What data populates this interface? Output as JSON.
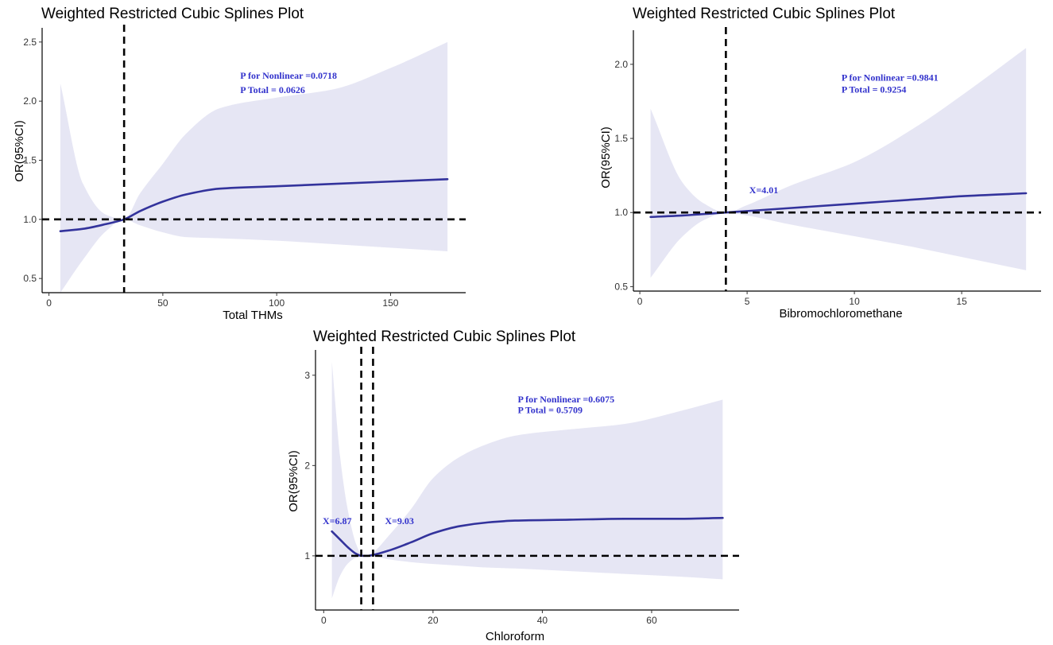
{
  "colors": {
    "ci_fill": "#e6e6f4",
    "line": "#33339c",
    "annotation": "#3333cc",
    "reference": "#000000"
  },
  "chart_data": [
    {
      "id": "thms",
      "type": "line",
      "title": "Weighted Restricted Cubic Splines Plot",
      "xlabel": "Total THMs",
      "ylabel": "OR(95%CI)",
      "xlim": [
        -3,
        183
      ],
      "ylim": [
        0.38,
        2.62
      ],
      "xticks": [
        0,
        50,
        100,
        150
      ],
      "xtick_labels": [
        "0",
        "50",
        "100",
        "150"
      ],
      "yticks": [
        0.5,
        1.0,
        1.5,
        2.0,
        2.5
      ],
      "ytick_labels": [
        "0.5",
        "1.0",
        "1.5",
        "2.0",
        "2.5"
      ],
      "x": [
        5,
        15,
        25,
        33,
        40,
        50,
        60,
        75,
        100,
        125,
        150,
        175
      ],
      "or": [
        0.9,
        0.92,
        0.96,
        1.0,
        1.07,
        1.15,
        1.21,
        1.26,
        1.28,
        1.3,
        1.32,
        1.34
      ],
      "ci_lower": [
        0.38,
        0.66,
        0.9,
        1.0,
        0.95,
        0.89,
        0.85,
        0.84,
        0.82,
        0.79,
        0.76,
        0.73
      ],
      "ci_upper": [
        2.15,
        1.3,
        1.04,
        1.0,
        1.22,
        1.47,
        1.72,
        1.94,
        2.03,
        2.1,
        2.28,
        2.5
      ],
      "ref_y": 1.0,
      "ref_x": [
        33
      ],
      "annotations": [
        {
          "text": "P for Nonlinear =0.0718",
          "x": 84,
          "y": 2.19
        },
        {
          "text": "P Total = 0.0626",
          "x": 84,
          "y": 2.07
        }
      ]
    },
    {
      "id": "bdcm",
      "type": "line",
      "title": "Weighted Restricted Cubic Splines Plot",
      "xlabel": "Bibromochloromethane",
      "ylabel": "OR(95%CI)",
      "xlim": [
        -0.3,
        18.7
      ],
      "ylim": [
        0.47,
        2.23
      ],
      "xticks": [
        0,
        5,
        10,
        15
      ],
      "xtick_labels": [
        "0",
        "5",
        "10",
        "15"
      ],
      "yticks": [
        0.5,
        1.0,
        1.5,
        2.0
      ],
      "ytick_labels": [
        "0.5",
        "1.0",
        "1.5",
        "2.0"
      ],
      "x": [
        0.5,
        2,
        3,
        4.01,
        5,
        7,
        10,
        13,
        15,
        18
      ],
      "or": [
        0.97,
        0.98,
        0.99,
        1.0,
        1.01,
        1.03,
        1.06,
        1.09,
        1.11,
        1.13
      ],
      "ci_lower": [
        0.56,
        0.84,
        0.95,
        1.0,
        0.98,
        0.92,
        0.84,
        0.76,
        0.7,
        0.61
      ],
      "ci_upper": [
        1.7,
        1.2,
        1.06,
        1.0,
        1.05,
        1.18,
        1.34,
        1.59,
        1.79,
        2.11
      ],
      "ref_y": 1.0,
      "ref_x": [
        4.01
      ],
      "annotations": [
        {
          "text": "P for Nonlinear =0.9841",
          "x": 9.4,
          "y": 1.89
        },
        {
          "text": "P Total = 0.9254",
          "x": 9.4,
          "y": 1.81
        },
        {
          "text": "X=4.01",
          "x": 5.1,
          "y": 1.13
        }
      ]
    },
    {
      "id": "chloroform",
      "type": "line",
      "title": "Weighted Restricted Cubic Splines Plot",
      "xlabel": "Chloroform",
      "ylabel": "OR(95%CI)",
      "xlim": [
        -1.5,
        76
      ],
      "ylim": [
        0.4,
        3.28
      ],
      "xticks": [
        0,
        20,
        40,
        60
      ],
      "xtick_labels": [
        "0",
        "20",
        "40",
        "60"
      ],
      "yticks": [
        1,
        2,
        3
      ],
      "ytick_labels": [
        "1",
        "2",
        "3"
      ],
      "x": [
        1.5,
        3,
        4.5,
        6,
        6.87,
        8,
        9.03,
        12,
        16,
        20,
        25,
        30,
        35,
        45,
        55,
        65,
        73
      ],
      "or": [
        1.27,
        1.18,
        1.09,
        1.02,
        1.0,
        1.0,
        1.01,
        1.06,
        1.15,
        1.25,
        1.33,
        1.37,
        1.39,
        1.4,
        1.41,
        1.41,
        1.42
      ],
      "ci_lower": [
        0.53,
        0.78,
        0.92,
        0.98,
        0.99,
        0.99,
        0.99,
        0.96,
        0.93,
        0.91,
        0.89,
        0.87,
        0.86,
        0.83,
        0.8,
        0.77,
        0.74
      ],
      "ci_upper": [
        3.15,
        2.1,
        1.48,
        1.12,
        1.02,
        1.01,
        1.04,
        1.23,
        1.52,
        1.86,
        2.1,
        2.24,
        2.33,
        2.4,
        2.46,
        2.6,
        2.73
      ],
      "ref_y": 1.0,
      "ref_x": [
        6.87,
        9.03
      ],
      "annotations": [
        {
          "text": "P for Nonlinear =0.6075",
          "x": 35.5,
          "y": 2.7
        },
        {
          "text": "P Total = 0.5709",
          "x": 35.5,
          "y": 2.58
        },
        {
          "text": "X=6.87",
          "x": -0.2,
          "y": 1.35
        },
        {
          "text": "X=9.03",
          "x": 11.2,
          "y": 1.35
        }
      ]
    }
  ]
}
